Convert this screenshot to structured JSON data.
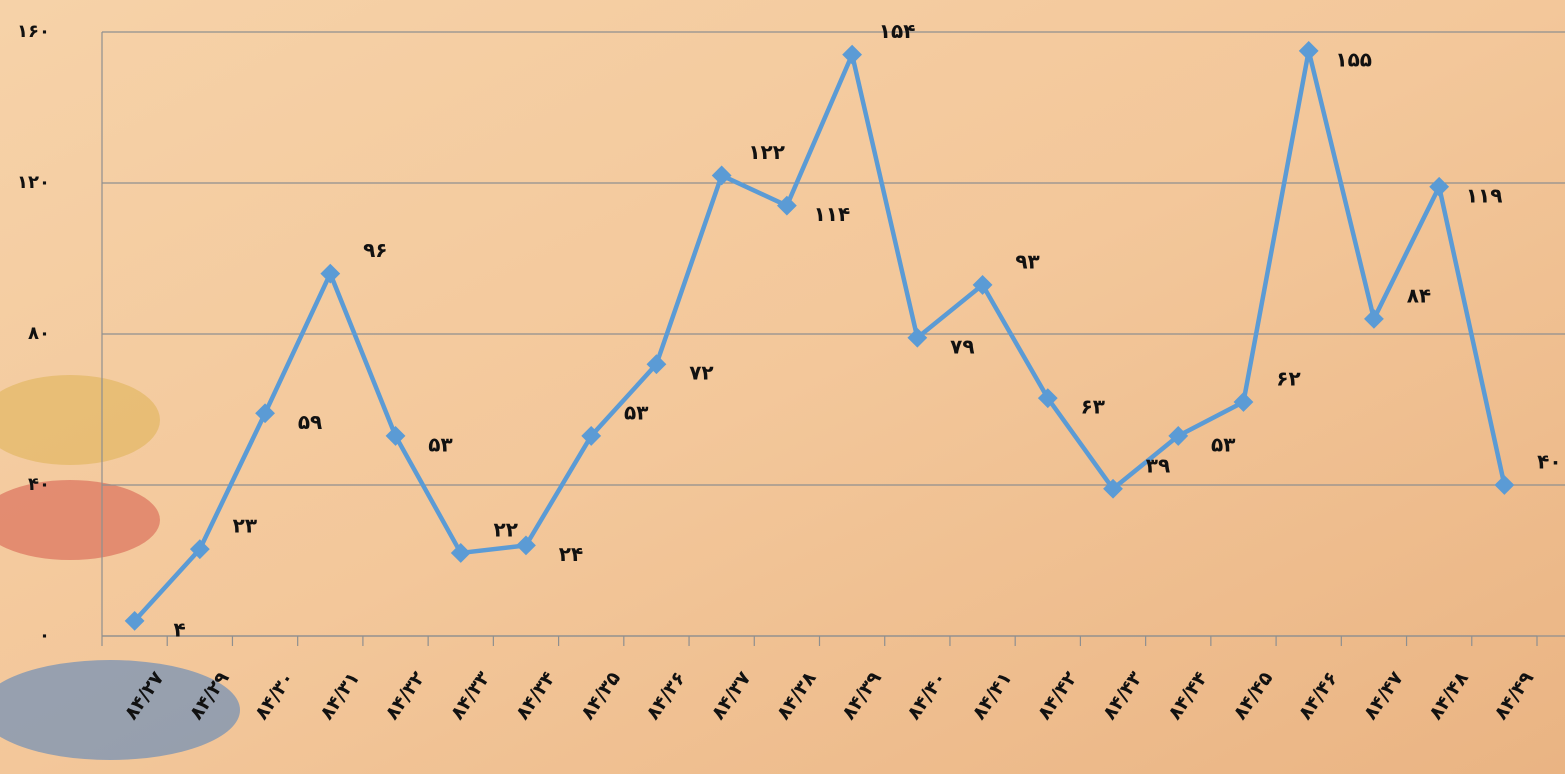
{
  "chart_data": {
    "type": "line",
    "categories": [
      "۸۴/۲۷",
      "۸۴/۲۹",
      "۸۴/۳۰",
      "۸۴/۳۱",
      "۸۴/۳۲",
      "۸۴/۳۳",
      "۸۴/۳۴",
      "۸۴/۳۵",
      "۸۴/۳۶",
      "۸۴/۳۷",
      "۸۴/۳۸",
      "۸۴/۳۹",
      "۸۴/۴۰",
      "۸۴/۴۱",
      "۸۴/۴۲",
      "۸۴/۴۳",
      "۸۴/۴۴",
      "۸۴/۴۵",
      "۸۴/۴۶",
      "۸۴/۴۷",
      "۸۴/۴۸",
      "۸۴/۴۹"
    ],
    "series": [
      {
        "color": "#5b9bd5",
        "values": [
          4,
          23,
          59,
          96,
          53,
          22,
          24,
          53,
          72,
          122,
          114,
          154,
          79,
          93,
          63,
          39,
          53,
          62,
          155,
          84,
          119,
          40
        ],
        "value_labels": [
          "۴",
          "۲۳",
          "۵۹",
          "۹۶",
          "۵۳",
          "۲۲",
          "۲۴",
          "۵۳",
          "۷۲",
          "۱۲۲",
          "۱۱۴",
          "۱۵۴",
          "۷۹",
          "۹۳",
          "۶۳",
          "۳۹",
          "۵۳",
          "۶۲",
          "۱۵۵",
          "۸۴",
          "۱۱۹",
          "۴۰"
        ]
      }
    ],
    "ylim": [
      0,
      160
    ],
    "yticks": [
      {
        "value": 0,
        "label": "۰"
      },
      {
        "value": 40,
        "label": "۴۰"
      },
      {
        "value": 80,
        "label": "۸۰"
      },
      {
        "value": 120,
        "label": "۱۲۰"
      },
      {
        "value": 160,
        "label": "۱۶۰"
      }
    ],
    "grid": true
  }
}
